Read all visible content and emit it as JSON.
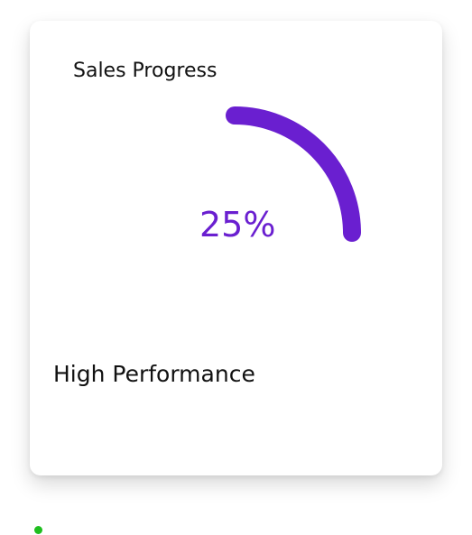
{
  "card": {
    "title": "Sales Progress",
    "value_text": "25%",
    "value": 0.25,
    "footer_label": "High Performance",
    "accent_color": "#6a1fd0"
  },
  "status": {
    "dot_color": "#1fbe1f"
  }
}
